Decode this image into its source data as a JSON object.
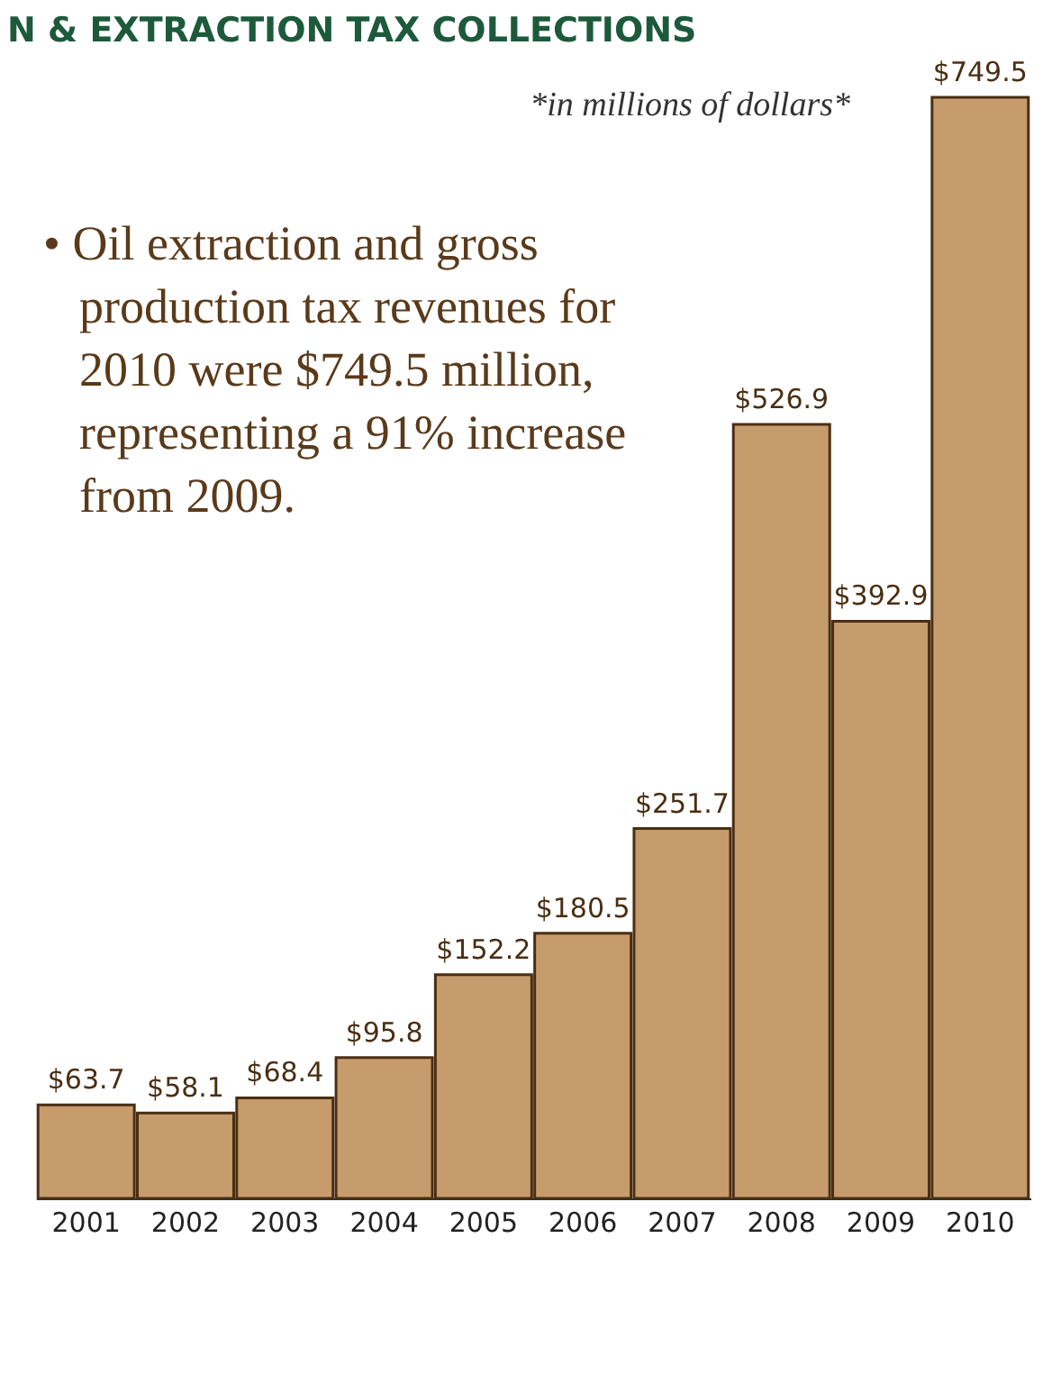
{
  "chart_data": {
    "type": "bar",
    "title": "N & EXTRACTION TAX COLLECTIONS",
    "subtitle": "*in millions of dollars*",
    "annotations": [
      "• Oil extraction and gross production tax revenues for 2010 were $749.5 million, representing a 91% increase from 2009."
    ],
    "categories": [
      "2001",
      "2002",
      "2003",
      "2004",
      "2005",
      "2006",
      "2007",
      "2008",
      "2009",
      "2010"
    ],
    "values": [
      63.7,
      58.1,
      68.4,
      95.8,
      152.2,
      180.5,
      251.7,
      526.9,
      392.9,
      749.5
    ],
    "value_labels": [
      "$63.7",
      "$58.1",
      "$68.4",
      "$95.8",
      "$152.2",
      "$180.5",
      "$251.7",
      "$526.9",
      "$392.9",
      "$749.5"
    ],
    "color": "#c69c6d",
    "tick_labels": "x"
  }
}
